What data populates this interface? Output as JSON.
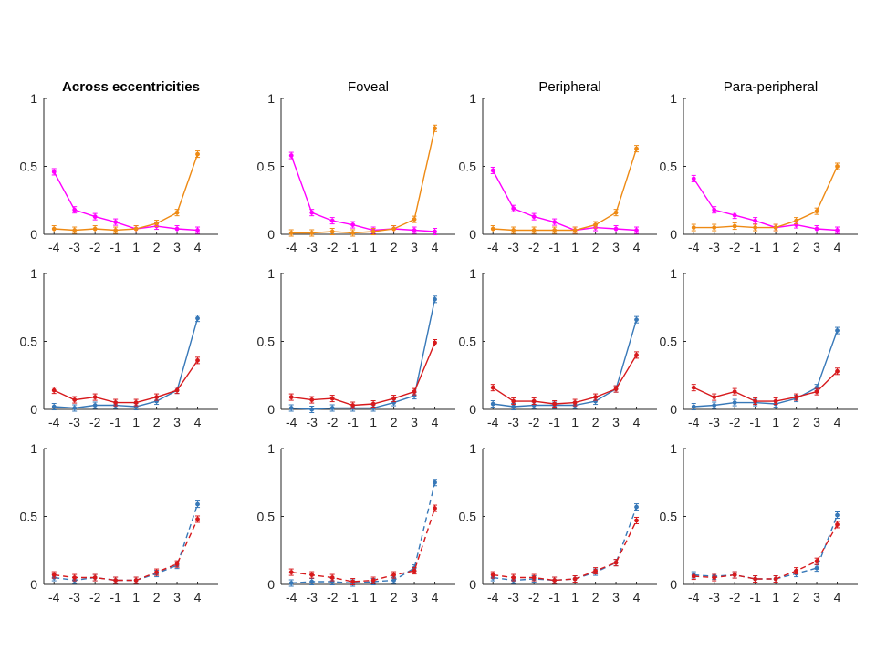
{
  "figure": {
    "row_titles": [
      "Across eccentricities",
      "Foveal",
      "Peripheral",
      "Para-peripheral"
    ],
    "title_bold": [
      true,
      false,
      false,
      false
    ]
  },
  "chart_data": [
    {
      "type": "line",
      "row": 0,
      "col": 0,
      "title": "Across eccentricities",
      "categories": [
        "-4",
        "-3",
        "-2",
        "-1",
        "1",
        "2",
        "3",
        "4"
      ],
      "ylim": [
        0,
        1
      ],
      "yticks": [
        "0",
        "0.5",
        "1"
      ],
      "grid": false,
      "series": [
        {
          "color": "#ff00ff",
          "style": "solid",
          "values": [
            0.46,
            0.18,
            0.13,
            0.09,
            0.04,
            0.06,
            0.04,
            0.03
          ]
        },
        {
          "color": "#ee8a14",
          "style": "solid",
          "values": [
            0.04,
            0.03,
            0.04,
            0.03,
            0.04,
            0.08,
            0.16,
            0.59
          ]
        }
      ]
    },
    {
      "type": "line",
      "row": 0,
      "col": 1,
      "title": "Foveal",
      "categories": [
        "-4",
        "-3",
        "-2",
        "-1",
        "1",
        "2",
        "3",
        "4"
      ],
      "ylim": [
        0,
        1
      ],
      "yticks": [
        "0",
        "0.5",
        "1"
      ],
      "grid": false,
      "series": [
        {
          "color": "#ff00ff",
          "style": "solid",
          "values": [
            0.58,
            0.16,
            0.1,
            0.07,
            0.03,
            0.04,
            0.03,
            0.02
          ]
        },
        {
          "color": "#ee8a14",
          "style": "solid",
          "values": [
            0.01,
            0.01,
            0.02,
            0.01,
            0.02,
            0.04,
            0.11,
            0.78
          ]
        }
      ]
    },
    {
      "type": "line",
      "row": 0,
      "col": 2,
      "title": "Peripheral",
      "categories": [
        "-4",
        "-3",
        "-2",
        "-1",
        "1",
        "2",
        "3",
        "4"
      ],
      "ylim": [
        0,
        1
      ],
      "yticks": [
        "0",
        "0.5",
        "1"
      ],
      "grid": false,
      "series": [
        {
          "color": "#ff00ff",
          "style": "solid",
          "values": [
            0.47,
            0.19,
            0.13,
            0.09,
            0.03,
            0.05,
            0.04,
            0.03
          ]
        },
        {
          "color": "#ee8a14",
          "style": "solid",
          "values": [
            0.04,
            0.03,
            0.03,
            0.03,
            0.03,
            0.07,
            0.16,
            0.63
          ]
        }
      ]
    },
    {
      "type": "line",
      "row": 0,
      "col": 3,
      "title": "Para-peripheral",
      "categories": [
        "-4",
        "-3",
        "-2",
        "-1",
        "1",
        "2",
        "3",
        "4"
      ],
      "ylim": [
        0,
        1
      ],
      "yticks": [
        "0",
        "0.5",
        "1"
      ],
      "grid": false,
      "series": [
        {
          "color": "#ff00ff",
          "style": "solid",
          "values": [
            0.41,
            0.18,
            0.14,
            0.1,
            0.05,
            0.07,
            0.04,
            0.03
          ]
        },
        {
          "color": "#ee8a14",
          "style": "solid",
          "values": [
            0.05,
            0.05,
            0.06,
            0.05,
            0.05,
            0.1,
            0.17,
            0.5
          ]
        }
      ]
    },
    {
      "type": "line",
      "row": 1,
      "col": 0,
      "title": "",
      "categories": [
        "-4",
        "-3",
        "-2",
        "-1",
        "1",
        "2",
        "3",
        "4"
      ],
      "ylim": [
        0,
        1
      ],
      "yticks": [
        "0",
        "0.5",
        "1"
      ],
      "grid": false,
      "series": [
        {
          "color": "#3778b8",
          "style": "solid",
          "values": [
            0.02,
            0.01,
            0.03,
            0.03,
            0.02,
            0.06,
            0.14,
            0.67
          ]
        },
        {
          "color": "#d7191c",
          "style": "solid",
          "values": [
            0.14,
            0.07,
            0.09,
            0.05,
            0.05,
            0.09,
            0.14,
            0.36
          ]
        }
      ]
    },
    {
      "type": "line",
      "row": 1,
      "col": 1,
      "title": "",
      "categories": [
        "-4",
        "-3",
        "-2",
        "-1",
        "1",
        "2",
        "3",
        "4"
      ],
      "ylim": [
        0,
        1
      ],
      "yticks": [
        "0",
        "0.5",
        "1"
      ],
      "grid": false,
      "series": [
        {
          "color": "#3778b8",
          "style": "solid",
          "values": [
            0.01,
            0.0,
            0.01,
            0.01,
            0.01,
            0.05,
            0.1,
            0.81
          ]
        },
        {
          "color": "#d7191c",
          "style": "solid",
          "values": [
            0.09,
            0.07,
            0.08,
            0.03,
            0.04,
            0.08,
            0.13,
            0.49
          ]
        }
      ]
    },
    {
      "type": "line",
      "row": 1,
      "col": 2,
      "title": "",
      "categories": [
        "-4",
        "-3",
        "-2",
        "-1",
        "1",
        "2",
        "3",
        "4"
      ],
      "ylim": [
        0,
        1
      ],
      "yticks": [
        "0",
        "0.5",
        "1"
      ],
      "grid": false,
      "series": [
        {
          "color": "#3778b8",
          "style": "solid",
          "values": [
            0.04,
            0.02,
            0.03,
            0.03,
            0.03,
            0.06,
            0.15,
            0.66
          ]
        },
        {
          "color": "#d7191c",
          "style": "solid",
          "values": [
            0.16,
            0.06,
            0.06,
            0.04,
            0.05,
            0.09,
            0.15,
            0.4
          ]
        }
      ]
    },
    {
      "type": "line",
      "row": 1,
      "col": 3,
      "title": "",
      "categories": [
        "-4",
        "-3",
        "-2",
        "-1",
        "1",
        "2",
        "3",
        "4"
      ],
      "ylim": [
        0,
        1
      ],
      "yticks": [
        "0",
        "0.5",
        "1"
      ],
      "grid": false,
      "series": [
        {
          "color": "#3778b8",
          "style": "solid",
          "values": [
            0.02,
            0.03,
            0.05,
            0.05,
            0.04,
            0.08,
            0.16,
            0.58
          ]
        },
        {
          "color": "#d7191c",
          "style": "solid",
          "values": [
            0.16,
            0.09,
            0.13,
            0.06,
            0.06,
            0.09,
            0.13,
            0.28
          ]
        }
      ]
    },
    {
      "type": "line",
      "row": 2,
      "col": 0,
      "title": "",
      "categories": [
        "-4",
        "-3",
        "-2",
        "-1",
        "1",
        "2",
        "3",
        "4"
      ],
      "ylim": [
        0,
        1
      ],
      "yticks": [
        "0",
        "0.5",
        "1"
      ],
      "grid": false,
      "series": [
        {
          "color": "#3778b8",
          "style": "dashed",
          "values": [
            0.05,
            0.03,
            0.05,
            0.03,
            0.03,
            0.08,
            0.14,
            0.59
          ]
        },
        {
          "color": "#d7191c",
          "style": "dashed",
          "values": [
            0.07,
            0.05,
            0.05,
            0.03,
            0.03,
            0.09,
            0.15,
            0.48
          ]
        }
      ]
    },
    {
      "type": "line",
      "row": 2,
      "col": 1,
      "title": "",
      "categories": [
        "-4",
        "-3",
        "-2",
        "-1",
        "1",
        "2",
        "3",
        "4"
      ],
      "ylim": [
        0,
        1
      ],
      "yticks": [
        "0",
        "0.5",
        "1"
      ],
      "grid": false,
      "series": [
        {
          "color": "#3778b8",
          "style": "dashed",
          "values": [
            0.01,
            0.02,
            0.02,
            0.01,
            0.02,
            0.03,
            0.12,
            0.75
          ]
        },
        {
          "color": "#d7191c",
          "style": "dashed",
          "values": [
            0.09,
            0.07,
            0.05,
            0.02,
            0.03,
            0.07,
            0.1,
            0.56
          ]
        }
      ]
    },
    {
      "type": "line",
      "row": 2,
      "col": 2,
      "title": "",
      "categories": [
        "-4",
        "-3",
        "-2",
        "-1",
        "1",
        "2",
        "3",
        "4"
      ],
      "ylim": [
        0,
        1
      ],
      "yticks": [
        "0",
        "0.5",
        "1"
      ],
      "grid": false,
      "series": [
        {
          "color": "#3778b8",
          "style": "dashed",
          "values": [
            0.05,
            0.03,
            0.04,
            0.03,
            0.04,
            0.09,
            0.16,
            0.57
          ]
        },
        {
          "color": "#d7191c",
          "style": "dashed",
          "values": [
            0.07,
            0.05,
            0.05,
            0.03,
            0.04,
            0.1,
            0.16,
            0.47
          ]
        }
      ]
    },
    {
      "type": "line",
      "row": 2,
      "col": 3,
      "title": "",
      "categories": [
        "-4",
        "-3",
        "-2",
        "-1",
        "1",
        "2",
        "3",
        "4"
      ],
      "ylim": [
        0,
        1
      ],
      "yticks": [
        "0",
        "0.5",
        "1"
      ],
      "grid": false,
      "series": [
        {
          "color": "#3778b8",
          "style": "dashed",
          "values": [
            0.07,
            0.06,
            0.07,
            0.04,
            0.04,
            0.08,
            0.12,
            0.51
          ]
        },
        {
          "color": "#d7191c",
          "style": "dashed",
          "values": [
            0.06,
            0.05,
            0.07,
            0.04,
            0.04,
            0.1,
            0.17,
            0.44
          ]
        }
      ]
    }
  ]
}
